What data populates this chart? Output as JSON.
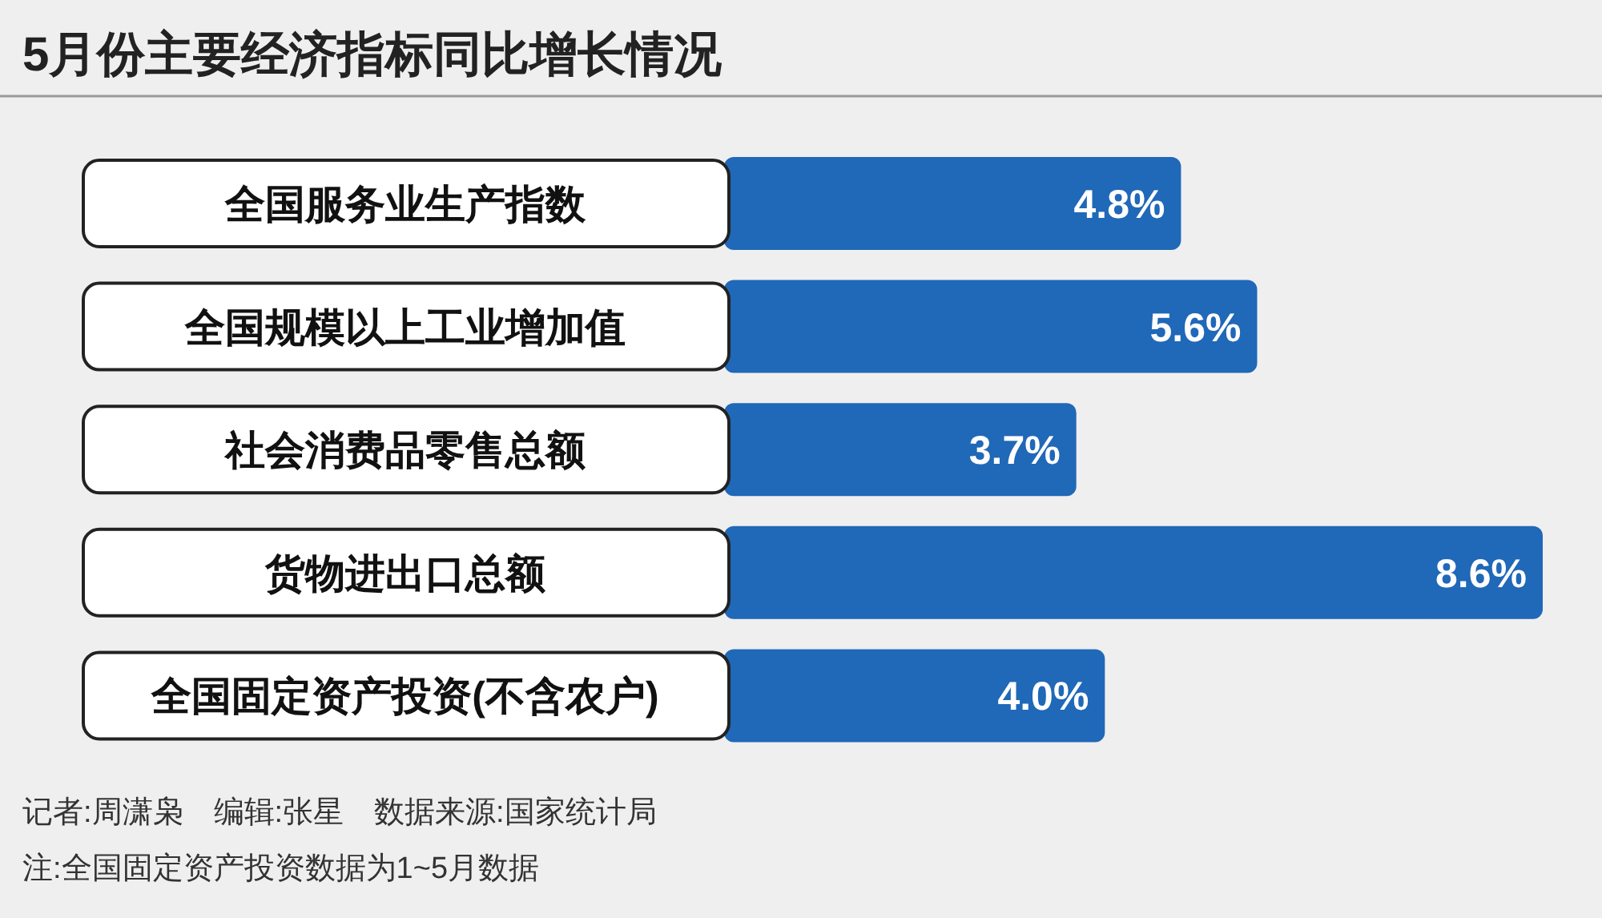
{
  "chart_data": {
    "type": "bar",
    "orientation": "horizontal",
    "title": "5月份主要经济指标同比增长情况",
    "categories": [
      "全国服务业生产指数",
      "全国规模以上工业增加值",
      "社会消费品零售总额",
      "货物进出口总额",
      "全国固定资产投资(不含农户)"
    ],
    "values": [
      4.8,
      5.6,
      3.7,
      8.6,
      4.0
    ],
    "value_labels": [
      "4.8%",
      "5.6%",
      "3.7%",
      "8.6%",
      "4.0%"
    ],
    "color": "#2068b8",
    "annotations": [
      "记者:周潇枭　编辑:张星　数据来源:国家统计局",
      "注:全国固定资产投资数据为1~5月数据"
    ]
  }
}
